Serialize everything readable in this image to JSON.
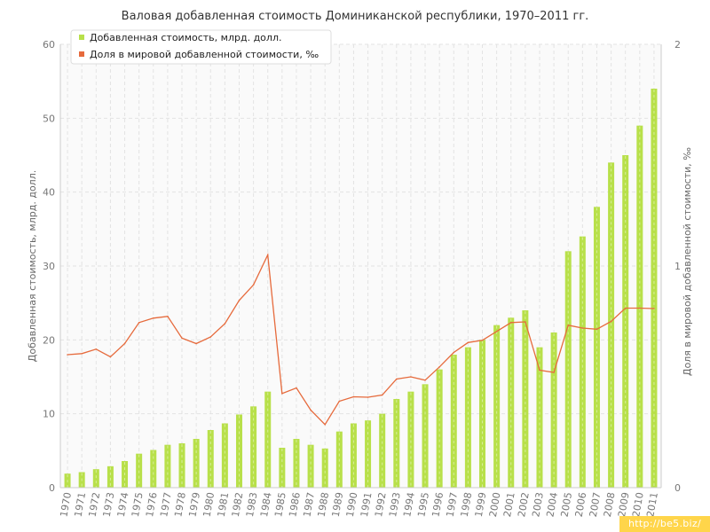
{
  "chart_data": {
    "type": "bar",
    "title": "Валовая добавленная стоимость Доминиканской республики, 1970–2011 гг.",
    "categories": [
      "1970",
      "1971",
      "1972",
      "1973",
      "1974",
      "1975",
      "1976",
      "1977",
      "1978",
      "1979",
      "1980",
      "1981",
      "1982",
      "1983",
      "1984",
      "1985",
      "1986",
      "1987",
      "1988",
      "1989",
      "1990",
      "1991",
      "1992",
      "1993",
      "1994",
      "1995",
      "1996",
      "1997",
      "1998",
      "1999",
      "2000",
      "2001",
      "2002",
      "2003",
      "2004",
      "2005",
      "2006",
      "2007",
      "2008",
      "2009",
      "2010",
      "2011"
    ],
    "series": [
      {
        "name": "Добавленная стоимость, млрд. долл.",
        "type": "bar",
        "axis": "left",
        "color": "#b8e04a",
        "values": [
          1.9,
          2.1,
          2.5,
          2.9,
          3.6,
          4.6,
          5.1,
          5.8,
          6.0,
          6.6,
          7.8,
          8.7,
          9.9,
          11.0,
          13.0,
          5.4,
          6.6,
          5.8,
          5.3,
          7.6,
          8.7,
          9.1,
          10.0,
          12.0,
          13.0,
          14.0,
          16.0,
          18.0,
          19.0,
          20.0,
          22.0,
          23.0,
          24.0,
          19.0,
          21.0,
          32.0,
          34.0,
          38.0,
          44.0,
          45.0,
          49.0,
          54.0
        ]
      },
      {
        "name": "Доля в мировой добавленной стоимости, ‰",
        "type": "line",
        "axis": "right",
        "color": "#e66a3c",
        "values": [
          0.6,
          0.605,
          0.625,
          0.59,
          0.65,
          0.745,
          0.765,
          0.773,
          0.675,
          0.65,
          0.68,
          0.74,
          0.845,
          0.915,
          1.05,
          0.425,
          0.45,
          0.35,
          0.285,
          0.39,
          0.41,
          0.408,
          0.418,
          0.49,
          0.5,
          0.485,
          0.545,
          0.61,
          0.655,
          0.665,
          0.705,
          0.745,
          0.748,
          0.53,
          0.52,
          0.733,
          0.72,
          0.715,
          0.75,
          0.81,
          0.81,
          0.808
        ]
      }
    ],
    "xlabel": "",
    "ylabel": "Добавленная стоимость, млрд. долл.",
    "ylim": [
      0,
      60
    ],
    "yticks": [
      0,
      10,
      20,
      30,
      40,
      50,
      60
    ],
    "y2label": "Доля в мировой добавленной стоимости, ‰",
    "y2lim": [
      0,
      2
    ],
    "y2ticks": [
      0,
      1,
      2
    ],
    "grid": true,
    "legend_position": "top-left",
    "colors": {
      "bar": "#b8e04a",
      "line": "#e66a3c",
      "grid": "#e3e3e3",
      "axis": "#cccccc"
    }
  },
  "watermark": "http://be5.biz/"
}
